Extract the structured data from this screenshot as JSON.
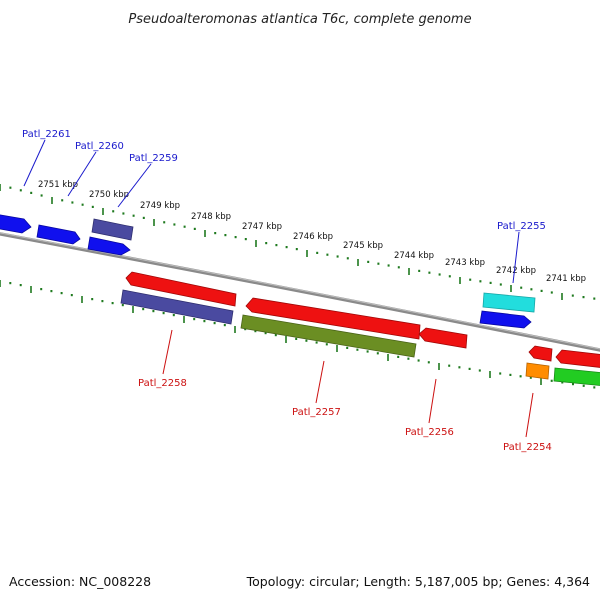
{
  "title": "Pseudoalteromonas atlantica T6c, complete genome",
  "footer": {
    "accession": "Accession: NC_008228",
    "summary": "Topology: circular; Length: 5,187,005 bp; Genes: 4,364"
  },
  "ruler_labels": [
    "2751 kbp",
    "2750 kbp",
    "2749 kbp",
    "2748 kbp",
    "2747 kbp",
    "2746 kbp",
    "2745 kbp",
    "2744 kbp",
    "2743 kbp",
    "2742 kbp",
    "2741 kbp"
  ],
  "gene_labels": {
    "patl_2261": "Patl_2261",
    "patl_2260": "Patl_2260",
    "patl_2259": "Patl_2259",
    "patl_2255": "Patl_2255",
    "patl_2258": "Patl_2258",
    "patl_2257": "Patl_2257",
    "patl_2256": "Patl_2256",
    "patl_2254": "Patl_2254"
  },
  "colors": {
    "forward_label": "#1a1acc",
    "reverse_label": "#cc1111",
    "ruler": "#1f7a1f",
    "backbone": "#8a8a8a",
    "blue": "#1010ee",
    "slate": "#4a4aa0",
    "red": "#ee1111",
    "olive": "#6b8e23",
    "cyan": "#22dddd",
    "orange": "#ff8c00",
    "green": "#22cc22"
  }
}
